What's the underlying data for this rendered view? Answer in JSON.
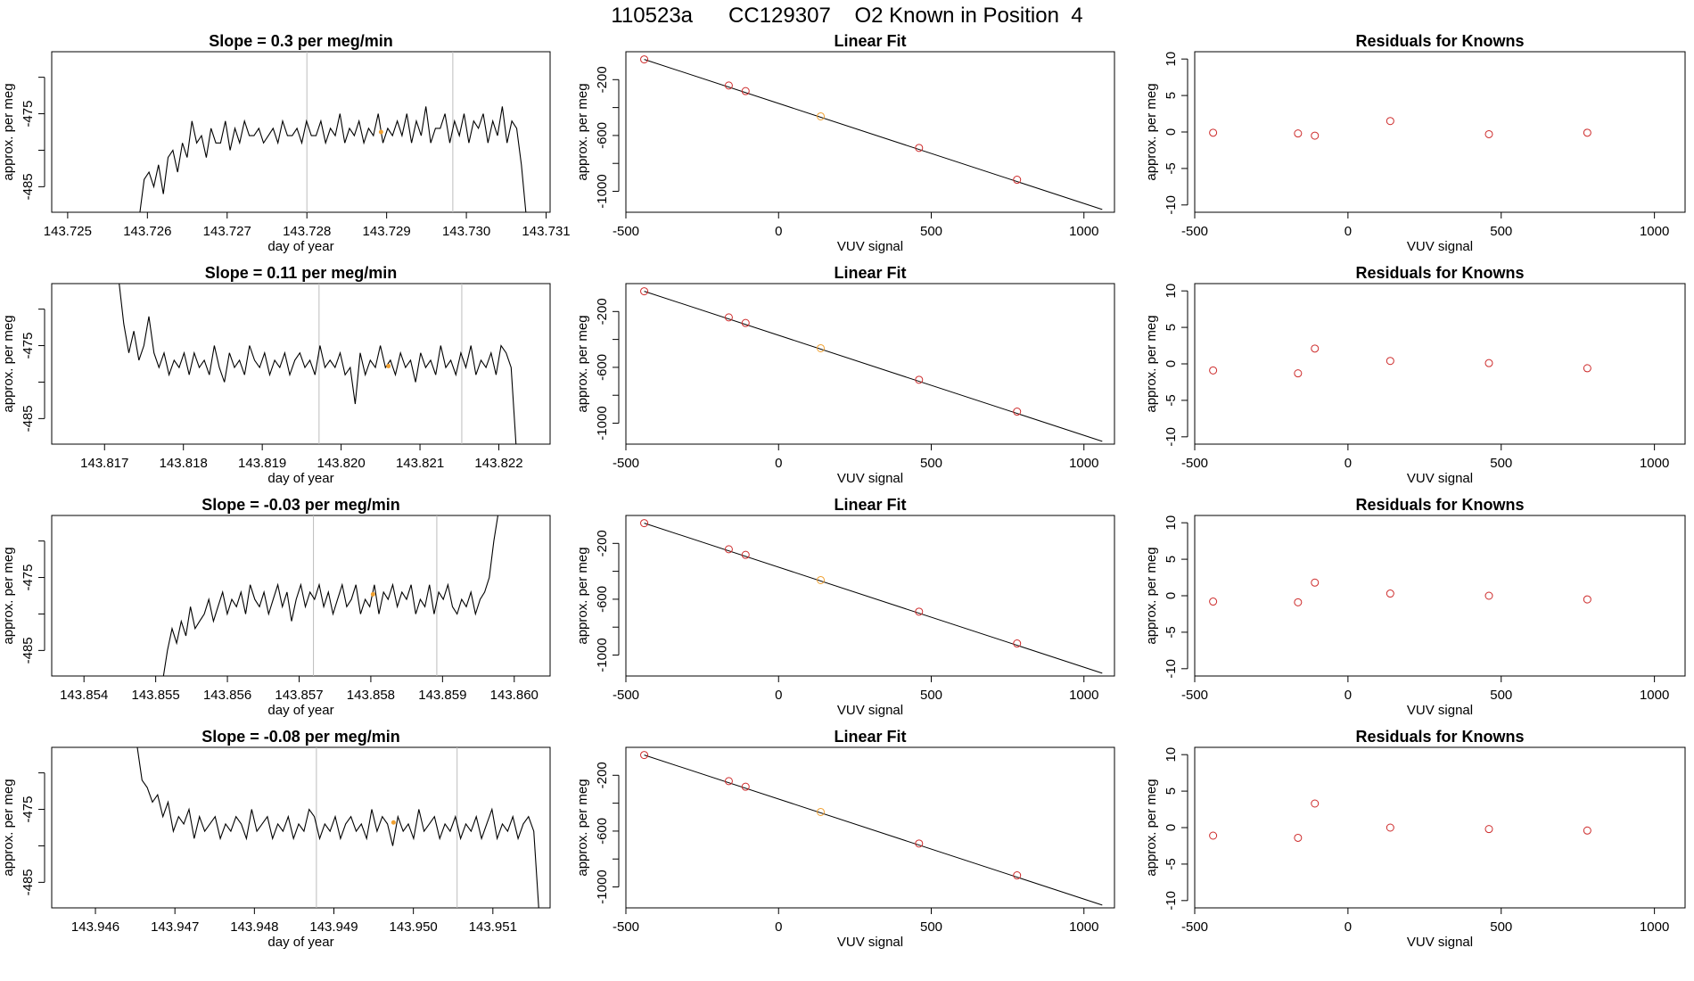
{
  "page": {
    "title": "110523a      CC129307    O2 Known in Position  4"
  },
  "colors": {
    "axis": "#000000",
    "trace": "#000000",
    "marker_line": "#bdbdbd",
    "highlight": "#f0a030",
    "point": "#cd2a2a"
  },
  "chart_data": [
    {
      "type": "line",
      "panel": "time-series",
      "row": 1,
      "title": "Slope =  0.3  per meg/min",
      "xlabel": "day of year",
      "ylabel": "approx. per meg",
      "xlim": [
        143.7248,
        143.73105
      ],
      "ylim": [
        -488.5,
        -466.5
      ],
      "xticks": [
        143.725,
        143.726,
        143.727,
        143.728,
        143.729,
        143.73,
        143.731
      ],
      "xtick_labels": [
        "143.725",
        "143.726",
        "143.727",
        "143.728",
        "143.729",
        "143.730",
        "143.731"
      ],
      "yticks": [
        -470,
        -475,
        -480,
        -485
      ],
      "ytick_labels": [
        "",
        "-475",
        "",
        "-485"
      ],
      "vlines": [
        143.728,
        143.72983
      ],
      "trace_start": 143.7259,
      "trace_end": 143.73075,
      "highlight_x": 143.72893,
      "highlight_y": -477.5,
      "trace": [
        -489,
        -484,
        -483,
        -485,
        -482,
        -486,
        -481,
        -480,
        -483,
        -479,
        -481,
        -476,
        -479,
        -478,
        -481,
        -477,
        -479,
        -479,
        -476,
        -480,
        -477,
        -479,
        -476,
        -478,
        -478,
        -477,
        -479,
        -478,
        -477,
        -479,
        -476,
        -478,
        -478,
        -477,
        -479,
        -476,
        -478,
        -478,
        -476,
        -479,
        -477,
        -478,
        -475,
        -479,
        -477,
        -478,
        -476,
        -479,
        -477,
        -478,
        -475,
        -479,
        -477,
        -478,
        -476,
        -478,
        -475,
        -479,
        -476,
        -478,
        -474,
        -479,
        -477,
        -477,
        -475,
        -479,
        -476,
        -478,
        -475,
        -479,
        -476,
        -477,
        -475,
        -479,
        -476,
        -478,
        -474,
        -479,
        -476,
        -477,
        -482,
        -489
      ]
    },
    {
      "type": "scatter",
      "panel": "linear-fit",
      "row": 1,
      "title": "Linear Fit",
      "xlabel": "VUV signal",
      "ylabel": "approx. per meg",
      "xlim": [
        -500,
        1100
      ],
      "ylim": [
        -1150,
        0
      ],
      "xticks": [
        -500,
        0,
        500,
        1000
      ],
      "xtick_labels": [
        "-500",
        "0",
        "500",
        "1000"
      ],
      "yticks": [
        -200,
        -400,
        -600,
        -800,
        -1000
      ],
      "ytick_labels": [
        "-200",
        "",
        "-600",
        "",
        "-1000"
      ],
      "fit_line": [
        [
          -440,
          -55
        ],
        [
          1060,
          -1130
        ]
      ],
      "points": [
        [
          -440,
          -55
        ],
        [
          -163,
          -242
        ],
        [
          -108,
          -282
        ],
        [
          138,
          -463
        ],
        [
          460,
          -689
        ],
        [
          781,
          -917
        ]
      ],
      "highlight_index": 3
    },
    {
      "type": "scatter",
      "panel": "residuals",
      "row": 1,
      "title": "Residuals for Knowns",
      "xlabel": "VUV signal",
      "ylabel": "approx. per meg",
      "xlim": [
        -500,
        1100
      ],
      "ylim": [
        -11,
        11
      ],
      "xticks": [
        -500,
        0,
        500,
        1000
      ],
      "xtick_labels": [
        "-500",
        "0",
        "500",
        "1000"
      ],
      "yticks": [
        10,
        5,
        0,
        -5,
        -10
      ],
      "ytick_labels": [
        "10",
        "5",
        "0",
        "-5",
        "-10"
      ],
      "points": [
        [
          -440,
          -0.1
        ],
        [
          -163,
          -0.2
        ],
        [
          -108,
          -0.5
        ],
        [
          138,
          1.5
        ],
        [
          460,
          -0.3
        ],
        [
          781,
          -0.1
        ]
      ]
    },
    {
      "type": "line",
      "panel": "time-series",
      "row": 2,
      "title": "Slope =  0.11  per meg/min",
      "xlabel": "day of year",
      "ylabel": "approx. per meg",
      "xlim": [
        143.81633,
        143.82265
      ],
      "ylim": [
        -488.5,
        -466.5
      ],
      "xticks": [
        143.817,
        143.818,
        143.819,
        143.82,
        143.821,
        143.822
      ],
      "xtick_labels": [
        "143.817",
        "143.818",
        "143.819",
        "143.820",
        "143.821",
        "143.822"
      ],
      "yticks": [
        -470,
        -475,
        -480,
        -485
      ],
      "ytick_labels": [
        "",
        "-475",
        "",
        "-485"
      ],
      "vlines": [
        143.81972,
        143.82153
      ],
      "trace_start": 143.81718,
      "trace_end": 143.82222,
      "highlight_x": 143.8206,
      "highlight_y": -477.8,
      "trace": [
        -466,
        -472,
        -476,
        -473,
        -477,
        -475,
        -471,
        -476,
        -478,
        -476,
        -479,
        -477,
        -478,
        -476,
        -479,
        -476,
        -478,
        -477,
        -479,
        -475,
        -478,
        -480,
        -476,
        -478,
        -477,
        -479,
        -475,
        -477,
        -478,
        -476,
        -479,
        -477,
        -478,
        -476,
        -479,
        -477,
        -476,
        -478,
        -477,
        -479,
        -475,
        -478,
        -477,
        -478,
        -476,
        -479,
        -478,
        -483,
        -476,
        -479,
        -477,
        -478,
        -475,
        -478,
        -477,
        -479,
        -476,
        -478,
        -477,
        -480,
        -476,
        -478,
        -477,
        -479,
        -475,
        -478,
        -477,
        -479,
        -476,
        -478,
        -475,
        -479,
        -477,
        -478,
        -476,
        -479,
        -475,
        -476,
        -478,
        -489
      ]
    },
    {
      "type": "scatter",
      "panel": "linear-fit",
      "row": 2,
      "title": "Linear Fit",
      "xlabel": "VUV signal",
      "ylabel": "approx. per meg",
      "xlim": [
        -500,
        1100
      ],
      "ylim": [
        -1150,
        0
      ],
      "xticks": [
        -500,
        0,
        500,
        1000
      ],
      "xtick_labels": [
        "-500",
        "0",
        "500",
        "1000"
      ],
      "yticks": [
        -200,
        -400,
        -600,
        -800,
        -1000
      ],
      "ytick_labels": [
        "-200",
        "",
        "-600",
        "",
        "-1000"
      ],
      "fit_line": [
        [
          -440,
          -55
        ],
        [
          1060,
          -1130
        ]
      ],
      "points": [
        [
          -440,
          -55
        ],
        [
          -163,
          -242
        ],
        [
          -108,
          -282
        ],
        [
          138,
          -463
        ],
        [
          460,
          -689
        ],
        [
          781,
          -917
        ]
      ],
      "highlight_index": 3
    },
    {
      "type": "scatter",
      "panel": "residuals",
      "row": 2,
      "title": "Residuals for Knowns",
      "xlabel": "VUV signal",
      "ylabel": "approx. per meg",
      "xlim": [
        -500,
        1100
      ],
      "ylim": [
        -11,
        11
      ],
      "xticks": [
        -500,
        0,
        500,
        1000
      ],
      "xtick_labels": [
        "-500",
        "0",
        "500",
        "1000"
      ],
      "yticks": [
        10,
        5,
        0,
        -5,
        -10
      ],
      "ytick_labels": [
        "10",
        "5",
        "0",
        "-5",
        "-10"
      ],
      "points": [
        [
          -440,
          -0.9
        ],
        [
          -163,
          -1.3
        ],
        [
          -108,
          2.1
        ],
        [
          138,
          0.4
        ],
        [
          460,
          0.1
        ],
        [
          781,
          -0.6
        ]
      ]
    },
    {
      "type": "line",
      "panel": "time-series",
      "row": 3,
      "title": "Slope =  -0.03  per meg/min",
      "xlabel": "day of year",
      "ylabel": "approx. per meg",
      "xlim": [
        143.85355,
        143.8605
      ],
      "ylim": [
        -488.5,
        -466.5
      ],
      "xticks": [
        143.854,
        143.855,
        143.856,
        143.857,
        143.858,
        143.859,
        143.86
      ],
      "xtick_labels": [
        "143.854",
        "143.855",
        "143.856",
        "143.857",
        "143.858",
        "143.859",
        "143.860"
      ],
      "yticks": [
        -470,
        -475,
        -480,
        -485
      ],
      "ytick_labels": [
        "",
        "-475",
        "",
        "-485"
      ],
      "vlines": [
        143.8572,
        143.85892
      ],
      "trace_start": 143.8551,
      "trace_end": 143.85978,
      "highlight_x": 143.85803,
      "highlight_y": -477.3,
      "trace": [
        -489,
        -485,
        -482,
        -484,
        -481,
        -483,
        -479,
        -482,
        -481,
        -480,
        -478,
        -481,
        -479,
        -477,
        -480,
        -478,
        -479,
        -477,
        -480,
        -476,
        -478,
        -479,
        -477,
        -480,
        -478,
        -476,
        -479,
        -477,
        -481,
        -478,
        -476,
        -479,
        -477,
        -478,
        -476,
        -479,
        -477,
        -480,
        -478,
        -476,
        -479,
        -478,
        -476,
        -480,
        -478,
        -479,
        -476,
        -480,
        -477,
        -478,
        -476,
        -479,
        -477,
        -478,
        -476,
        -480,
        -478,
        -479,
        -476,
        -480,
        -477,
        -478,
        -476,
        -479,
        -480,
        -478,
        -479,
        -477,
        -480,
        -478,
        -477,
        -475,
        -470,
        -466
      ]
    },
    {
      "type": "scatter",
      "panel": "linear-fit",
      "row": 3,
      "title": "Linear Fit",
      "xlabel": "VUV signal",
      "ylabel": "approx. per meg",
      "xlim": [
        -500,
        1100
      ],
      "ylim": [
        -1150,
        0
      ],
      "xticks": [
        -500,
        0,
        500,
        1000
      ],
      "xtick_labels": [
        "-500",
        "0",
        "500",
        "1000"
      ],
      "yticks": [
        -200,
        -400,
        -600,
        -800,
        -1000
      ],
      "ytick_labels": [
        "-200",
        "",
        "-600",
        "",
        "-1000"
      ],
      "fit_line": [
        [
          -440,
          -55
        ],
        [
          1060,
          -1130
        ]
      ],
      "points": [
        [
          -440,
          -55
        ],
        [
          -163,
          -242
        ],
        [
          -108,
          -282
        ],
        [
          138,
          -463
        ],
        [
          460,
          -689
        ],
        [
          781,
          -917
        ]
      ],
      "highlight_index": 3
    },
    {
      "type": "scatter",
      "panel": "residuals",
      "row": 3,
      "title": "Residuals for Knowns",
      "xlabel": "VUV signal",
      "ylabel": "approx. per meg",
      "xlim": [
        -500,
        1100
      ],
      "ylim": [
        -11,
        11
      ],
      "xticks": [
        -500,
        0,
        500,
        1000
      ],
      "xtick_labels": [
        "-500",
        "0",
        "500",
        "1000"
      ],
      "yticks": [
        10,
        5,
        0,
        -5,
        -10
      ],
      "ytick_labels": [
        "10",
        "5",
        "0",
        "-5",
        "-10"
      ],
      "points": [
        [
          -440,
          -0.8
        ],
        [
          -163,
          -0.9
        ],
        [
          -108,
          1.8
        ],
        [
          138,
          0.3
        ],
        [
          460,
          0.0
        ],
        [
          781,
          -0.5
        ]
      ]
    },
    {
      "type": "line",
      "panel": "time-series",
      "row": 4,
      "title": "Slope =  -0.08  per meg/min",
      "xlabel": "day of year",
      "ylabel": "approx. per meg",
      "xlim": [
        143.94545,
        143.95172
      ],
      "ylim": [
        -488.5,
        -466.5
      ],
      "xticks": [
        143.946,
        143.947,
        143.948,
        143.949,
        143.95,
        143.951
      ],
      "xtick_labels": [
        "143.946",
        "143.947",
        "143.948",
        "143.949",
        "143.950",
        "143.951"
      ],
      "yticks": [
        -470,
        -475,
        -480,
        -485
      ],
      "ytick_labels": [
        "",
        "-475",
        "",
        "-485"
      ],
      "vlines": [
        143.94878,
        143.95055
      ],
      "trace_start": 143.94652,
      "trace_end": 143.95158,
      "highlight_x": 143.94975,
      "highlight_y": -476.8,
      "trace": [
        -466,
        -471,
        -472,
        -474,
        -473,
        -476,
        -474,
        -478,
        -476,
        -477,
        -475,
        -479,
        -476,
        -478,
        -477,
        -476,
        -479,
        -477,
        -478,
        -476,
        -477,
        -479,
        -475,
        -478,
        -477,
        -476,
        -479,
        -477,
        -478,
        -476,
        -479,
        -477,
        -478,
        -475,
        -476,
        -479,
        -477,
        -478,
        -476,
        -479,
        -477,
        -476,
        -478,
        -477,
        -479,
        -475,
        -478,
        -476,
        -477,
        -480,
        -476,
        -478,
        -477,
        -479,
        -475,
        -478,
        -477,
        -476,
        -479,
        -477,
        -478,
        -476,
        -479,
        -477,
        -478,
        -476,
        -479,
        -477,
        -475,
        -479,
        -477,
        -478,
        -476,
        -479,
        -477,
        -476,
        -478,
        -489
      ]
    },
    {
      "type": "scatter",
      "panel": "linear-fit",
      "row": 4,
      "title": "Linear Fit",
      "xlabel": "VUV signal",
      "ylabel": "approx. per meg",
      "xlim": [
        -500,
        1100
      ],
      "ylim": [
        -1150,
        0
      ],
      "xticks": [
        -500,
        0,
        500,
        1000
      ],
      "xtick_labels": [
        "-500",
        "0",
        "500",
        "1000"
      ],
      "yticks": [
        -200,
        -400,
        -600,
        -800,
        -1000
      ],
      "ytick_labels": [
        "-200",
        "",
        "-600",
        "",
        "-1000"
      ],
      "fit_line": [
        [
          -440,
          -55
        ],
        [
          1060,
          -1130
        ]
      ],
      "points": [
        [
          -440,
          -55
        ],
        [
          -163,
          -242
        ],
        [
          -108,
          -282
        ],
        [
          138,
          -463
        ],
        [
          460,
          -689
        ],
        [
          781,
          -917
        ]
      ],
      "highlight_index": 3
    },
    {
      "type": "scatter",
      "panel": "residuals",
      "row": 4,
      "title": "Residuals for Knowns",
      "xlabel": "VUV signal",
      "ylabel": "approx. per meg",
      "xlim": [
        -500,
        1100
      ],
      "ylim": [
        -11,
        11
      ],
      "xticks": [
        -500,
        0,
        500,
        1000
      ],
      "xtick_labels": [
        "-500",
        "0",
        "500",
        "1000"
      ],
      "yticks": [
        10,
        5,
        0,
        -5,
        -10
      ],
      "ytick_labels": [
        "10",
        "5",
        "0",
        "-5",
        "-10"
      ],
      "points": [
        [
          -440,
          -1.1
        ],
        [
          -163,
          -1.4
        ],
        [
          -108,
          3.3
        ],
        [
          138,
          0.0
        ],
        [
          460,
          -0.2
        ],
        [
          781,
          -0.4
        ]
      ]
    }
  ]
}
